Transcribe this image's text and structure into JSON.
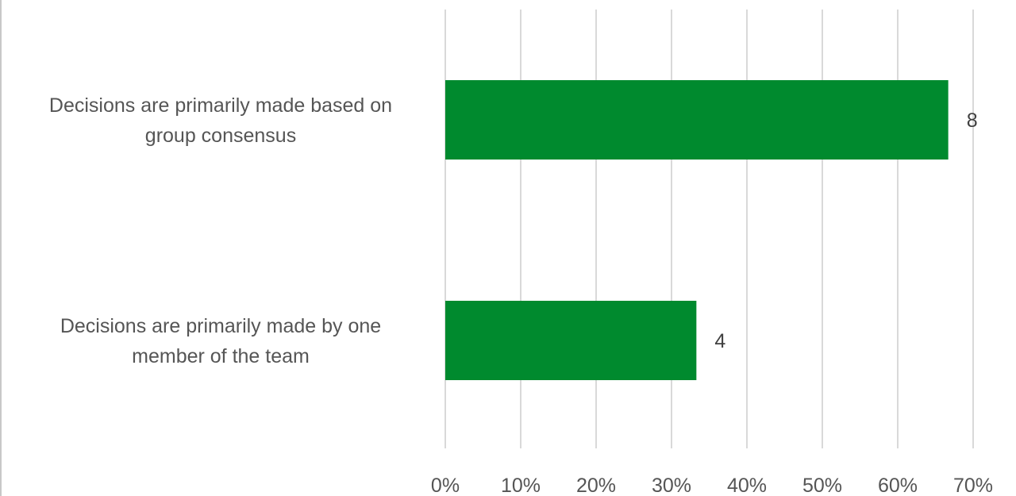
{
  "chart_data": {
    "type": "bar",
    "orientation": "horizontal",
    "categories": [
      "Decisions are primarily made based on group consensus",
      "Decisions are primarily made by one member of the team"
    ],
    "category_label_lines": [
      [
        "Decisions are primarily made based on",
        "group consensus"
      ],
      [
        "Decisions are primarily made by one",
        "member of the team"
      ]
    ],
    "series": [
      {
        "values": [
          0.667,
          0.333
        ],
        "data_labels": [
          "8",
          "4"
        ],
        "color": "#008a2e"
      }
    ],
    "x_ticks": [
      "0%",
      "10%",
      "20%",
      "30%",
      "40%",
      "50%",
      "60%",
      "70%"
    ],
    "xlim": [
      0,
      0.7
    ],
    "grid": true,
    "grid_color": "#d9d9d9",
    "legend": "none"
  }
}
